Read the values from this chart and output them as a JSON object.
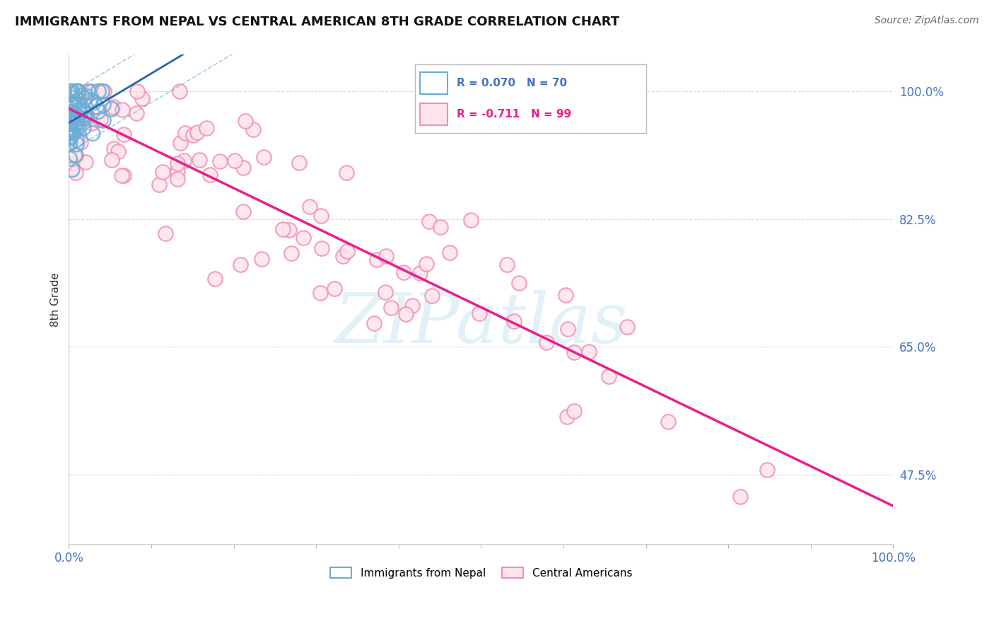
{
  "title": "IMMIGRANTS FROM NEPAL VS CENTRAL AMERICAN 8TH GRADE CORRELATION CHART",
  "source": "Source: ZipAtlas.com",
  "ylabel": "8th Grade",
  "R_nepal": 0.07,
  "N_nepal": 70,
  "R_central": -0.711,
  "N_central": 99,
  "nepal_edge_color": "#6baed6",
  "central_edge_color": "#f48fb1",
  "central_fill_color": "#fce4ec",
  "nepal_line_color": "#2166ac",
  "central_line_color": "#e91e8c",
  "nepal_ci_color": "#6baed6",
  "watermark_color": "#d0e8f0",
  "watermark_text": "ZIPatlas",
  "background_color": "#ffffff",
  "ytick_labels": [
    "100.0%",
    "82.5%",
    "65.0%",
    "47.5%"
  ],
  "ytick_values": [
    1.0,
    0.825,
    0.65,
    0.475
  ],
  "xlim": [
    0.0,
    1.0
  ],
  "ylim": [
    0.38,
    1.05
  ],
  "nepal_seed": 42,
  "central_seed": 99
}
